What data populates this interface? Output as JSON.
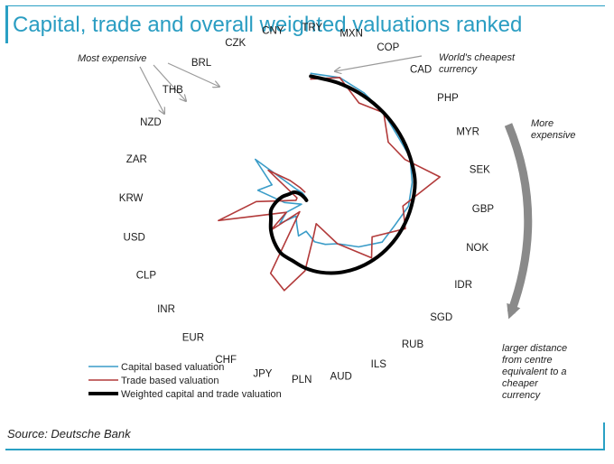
{
  "title": "Capital, trade and overall weighted valuations ranked",
  "source": "Source: Deutsche Bank",
  "colors": {
    "title": "#2a9dc2",
    "capital": "#3a9cc8",
    "trade": "#b23a3a",
    "weighted": "#000000",
    "arrow_grey": "#8a8a8a"
  },
  "annotations": {
    "most_expensive": "Most expensive",
    "cheapest": "World's cheapest currency",
    "more_expensive": "More expensive",
    "distance_note": "larger distance from centre equivalent to a cheaper currency"
  },
  "chart_data": {
    "type": "line",
    "subtype": "radar",
    "title": "Capital, trade and overall weighted valuations ranked",
    "categories": [
      "TRY",
      "MXN",
      "COP",
      "CAD",
      "PHP",
      "MYR",
      "SEK",
      "GBP",
      "NOK",
      "IDR",
      "SGD",
      "RUB",
      "ILS",
      "AUD",
      "PLN",
      "JPY",
      "CHF",
      "EUR",
      "INR",
      "CLP",
      "USD",
      "KRW",
      "ZAR",
      "NZD",
      "THB",
      "BRL",
      "CZK",
      "CNY"
    ],
    "series": [
      {
        "name": "Capital based valuation",
        "values": [
          23,
          23,
          22,
          21,
          20,
          20,
          19,
          18,
          16,
          15,
          12,
          9,
          8,
          7,
          5,
          6,
          4,
          3,
          6,
          4,
          1,
          4,
          9,
          7,
          12,
          3,
          2,
          1
        ]
      },
      {
        "name": "Trade based valuation",
        "values": [
          22,
          23,
          20,
          21,
          18,
          19,
          24,
          17,
          18,
          13,
          15,
          9,
          4,
          6,
          12,
          16,
          14,
          2,
          8,
          4,
          16,
          9,
          2,
          2,
          9,
          5,
          3,
          2
        ]
      },
      {
        "name": "Weighted capital and trade valuation",
        "values": [
          22.5,
          22.0,
          21.5,
          21.0,
          20.5,
          20.0,
          19.5,
          18.5,
          17.5,
          16.5,
          15.5,
          14.5,
          13.5,
          12.5,
          11.5,
          10.5,
          10.0,
          9.0,
          8.0,
          7.0,
          6.5,
          5.5,
          4.5,
          3.5,
          3.0,
          2.0,
          1.0,
          0.5
        ]
      }
    ],
    "legend": "bottom-left"
  }
}
